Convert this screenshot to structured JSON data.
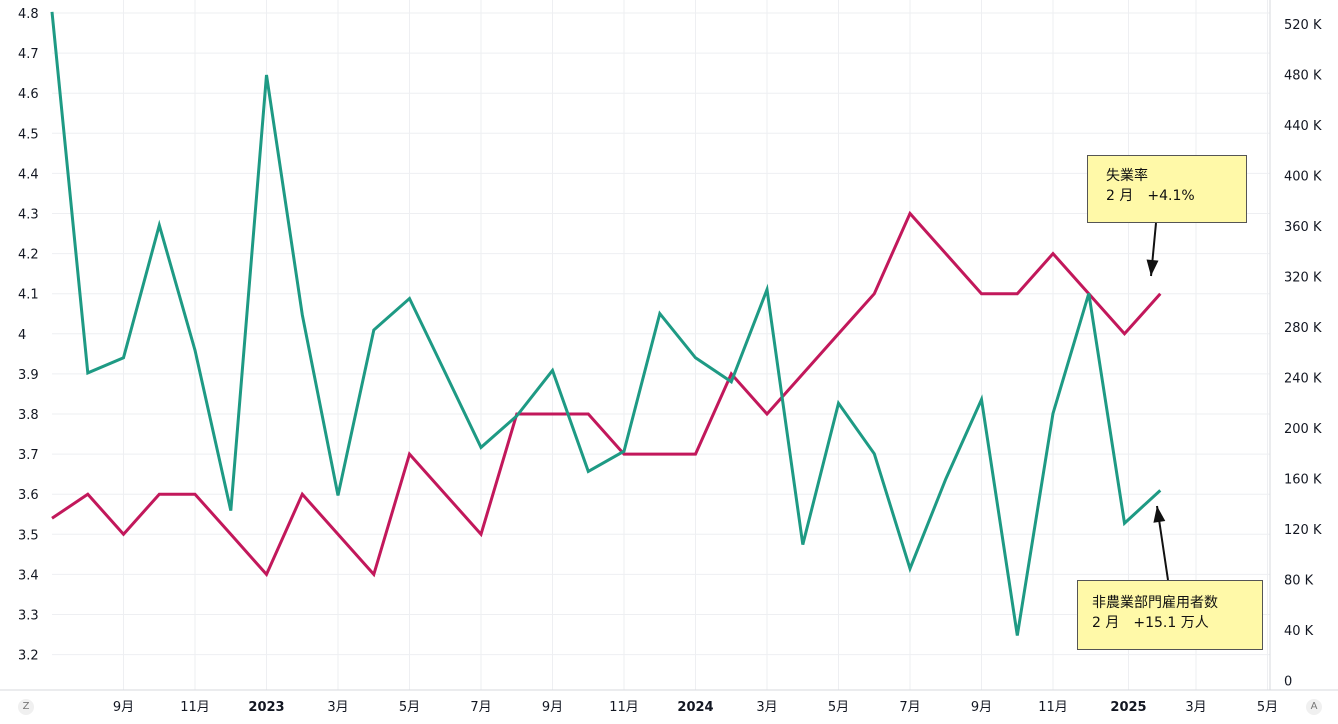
{
  "chart_data": {
    "type": "line",
    "x": [
      "2022-07",
      "2022-08",
      "2022-09",
      "2022-10",
      "2022-11",
      "2022-12",
      "2023-01",
      "2023-02",
      "2023-03",
      "2023-04",
      "2023-05",
      "2023-06",
      "2023-07",
      "2023-08",
      "2023-09",
      "2023-10",
      "2023-11",
      "2023-12",
      "2024-01",
      "2024-02",
      "2024-03",
      "2024-04",
      "2024-05",
      "2024-06",
      "2024-07",
      "2024-08",
      "2024-09",
      "2024-10",
      "2024-11",
      "2024-12",
      "2025-01",
      "2025-02"
    ],
    "series": [
      {
        "name": "失業率",
        "axis": "left",
        "color": "#c2185b",
        "values": [
          3.54,
          3.6,
          3.5,
          3.6,
          3.6,
          3.5,
          3.4,
          3.6,
          3.5,
          3.4,
          3.7,
          3.6,
          3.5,
          3.8,
          3.8,
          3.8,
          3.7,
          3.7,
          3.7,
          3.9,
          3.8,
          3.9,
          4.0,
          4.1,
          4.3,
          4.2,
          4.1,
          4.1,
          4.2,
          4.1,
          4.0,
          4.1
        ]
      },
      {
        "name": "非農業部門雇用者数",
        "axis": "right",
        "color": "#1e9a84",
        "values": [
          530,
          244,
          256,
          361,
          262,
          135,
          480,
          290,
          147,
          278,
          303,
          244,
          185,
          210,
          246,
          166,
          182,
          291,
          256,
          237,
          310,
          108,
          220,
          180,
          89,
          160,
          223,
          36,
          212,
          307,
          125,
          151
        ]
      }
    ],
    "left_axis": {
      "ticks": [
        "4.8",
        "4.7",
        "4.6",
        "4.5",
        "4.4",
        "4.3",
        "4.2",
        "4.1",
        "4",
        "3.9",
        "3.8",
        "3.7",
        "3.6",
        "3.5",
        "3.4",
        "3.3",
        "3.2"
      ],
      "range": [
        3.15,
        4.8
      ]
    },
    "right_axis": {
      "ticks": [
        "520 K",
        "480 K",
        "440 K",
        "400 K",
        "360 K",
        "320 K",
        "280 K",
        "240 K",
        "200 K",
        "160 K",
        "120 K",
        "80 K",
        "40 K",
        "0"
      ],
      "range": [
        0,
        540
      ]
    },
    "x_ticks": [
      {
        "label": "9月",
        "date": "2022-09",
        "bold": false
      },
      {
        "label": "11月",
        "date": "2022-11",
        "bold": false
      },
      {
        "label": "2023",
        "date": "2023-01",
        "bold": true
      },
      {
        "label": "3月",
        "date": "2023-03",
        "bold": false
      },
      {
        "label": "5月",
        "date": "2023-05",
        "bold": false
      },
      {
        "label": "7月",
        "date": "2023-07",
        "bold": false
      },
      {
        "label": "9月",
        "date": "2023-09",
        "bold": false
      },
      {
        "label": "11月",
        "date": "2023-11",
        "bold": false
      },
      {
        "label": "2024",
        "date": "2024-01",
        "bold": true
      },
      {
        "label": "3月",
        "date": "2024-03",
        "bold": false
      },
      {
        "label": "5月",
        "date": "2024-05",
        "bold": false
      },
      {
        "label": "7月",
        "date": "2024-07",
        "bold": false
      },
      {
        "label": "9月",
        "date": "2024-09",
        "bold": false
      },
      {
        "label": "11月",
        "date": "2024-11",
        "bold": false
      },
      {
        "label": "2025",
        "date": "2025-01",
        "bold": true
      },
      {
        "label": "3月",
        "date": "2025-03",
        "bold": false
      },
      {
        "label": "5月",
        "date": "2025-05",
        "bold": false
      }
    ],
    "grid": true,
    "annotations": [
      {
        "title": "失業率",
        "text": "2 月　+4.1%"
      },
      {
        "title": "非農業部門雇用者数",
        "text": "2 月　+15.1 万人"
      }
    ],
    "corner_labels": {
      "left": "Z",
      "right": "A"
    }
  }
}
